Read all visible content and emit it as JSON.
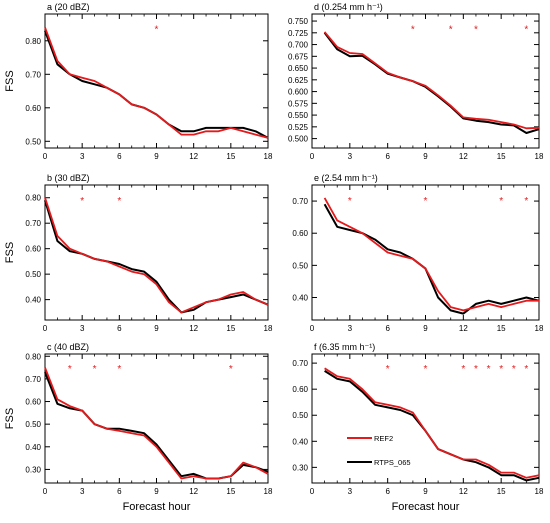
{
  "chart_data": [
    {
      "type": "line",
      "title": "a (20 dBZ)",
      "ylabel": "FSS",
      "xlabel": "",
      "xlim": [
        0,
        18
      ],
      "ylim": [
        0.48,
        0.88
      ],
      "xticks": [
        0,
        3,
        6,
        9,
        12,
        15,
        18
      ],
      "yticks": [
        0.5,
        0.6,
        0.7,
        0.8
      ],
      "ytick_labels": [
        "0.50",
        "0.60",
        "0.70",
        "0.80"
      ],
      "x": [
        0,
        1,
        2,
        3,
        4,
        5,
        6,
        7,
        8,
        9,
        10,
        11,
        12,
        13,
        14,
        15,
        16,
        17,
        18
      ],
      "series": [
        {
          "name": "REF2",
          "color": "#e41a1c",
          "values": [
            0.84,
            0.74,
            0.7,
            0.69,
            0.68,
            0.66,
            0.64,
            0.61,
            0.6,
            0.58,
            0.55,
            0.52,
            0.52,
            0.53,
            0.53,
            0.54,
            0.53,
            0.52,
            0.51
          ]
        },
        {
          "name": "RTPS_065",
          "color": "#000000",
          "values": [
            0.83,
            0.73,
            0.7,
            0.68,
            0.67,
            0.66,
            0.64,
            0.61,
            0.6,
            0.58,
            0.55,
            0.53,
            0.53,
            0.54,
            0.54,
            0.54,
            0.54,
            0.53,
            0.51
          ]
        }
      ],
      "significance_marks": [
        9
      ]
    },
    {
      "type": "line",
      "title": "b (30 dBZ)",
      "ylabel": "FSS",
      "xlabel": "",
      "xlim": [
        0,
        18
      ],
      "ylim": [
        0.32,
        0.85
      ],
      "xticks": [
        0,
        3,
        6,
        9,
        12,
        15,
        18
      ],
      "yticks": [
        0.4,
        0.5,
        0.6,
        0.7,
        0.8
      ],
      "ytick_labels": [
        "0.40",
        "0.50",
        "0.60",
        "0.70",
        "0.80"
      ],
      "x": [
        0,
        1,
        2,
        3,
        4,
        5,
        6,
        7,
        8,
        9,
        10,
        11,
        12,
        13,
        14,
        15,
        16,
        17,
        18
      ],
      "series": [
        {
          "name": "REF2",
          "color": "#e41a1c",
          "values": [
            0.8,
            0.65,
            0.6,
            0.58,
            0.56,
            0.55,
            0.53,
            0.51,
            0.5,
            0.46,
            0.39,
            0.35,
            0.37,
            0.39,
            0.4,
            0.42,
            0.43,
            0.4,
            0.38
          ]
        },
        {
          "name": "RTPS_065",
          "color": "#000000",
          "values": [
            0.79,
            0.63,
            0.59,
            0.58,
            0.56,
            0.55,
            0.54,
            0.52,
            0.51,
            0.47,
            0.4,
            0.35,
            0.36,
            0.39,
            0.4,
            0.41,
            0.42,
            0.4,
            0.38
          ]
        }
      ],
      "significance_marks": [
        3,
        6
      ]
    },
    {
      "type": "line",
      "title": "c (40 dBZ)",
      "ylabel": "FSS",
      "xlabel": "Forecast hour",
      "xlim": [
        0,
        18
      ],
      "ylim": [
        0.24,
        0.81
      ],
      "xticks": [
        0,
        3,
        6,
        9,
        12,
        15,
        18
      ],
      "yticks": [
        0.3,
        0.4,
        0.5,
        0.6,
        0.7,
        0.8
      ],
      "ytick_labels": [
        "0.30",
        "0.40",
        "0.50",
        "0.60",
        "0.70",
        "0.80"
      ],
      "x": [
        0,
        1,
        2,
        3,
        4,
        5,
        6,
        7,
        8,
        9,
        10,
        11,
        12,
        13,
        14,
        15,
        16,
        17,
        18
      ],
      "series": [
        {
          "name": "REF2",
          "color": "#e41a1c",
          "values": [
            0.75,
            0.61,
            0.58,
            0.56,
            0.5,
            0.48,
            0.47,
            0.46,
            0.45,
            0.4,
            0.33,
            0.26,
            0.27,
            0.26,
            0.26,
            0.27,
            0.33,
            0.31,
            0.28
          ]
        },
        {
          "name": "RTPS_065",
          "color": "#000000",
          "values": [
            0.73,
            0.59,
            0.57,
            0.56,
            0.5,
            0.48,
            0.48,
            0.47,
            0.46,
            0.41,
            0.34,
            0.27,
            0.28,
            0.26,
            0.26,
            0.27,
            0.32,
            0.31,
            0.29
          ]
        }
      ],
      "significance_marks": [
        2,
        4,
        6,
        15
      ]
    },
    {
      "type": "line",
      "title": "d (0.254 mm h⁻¹)",
      "ylabel": "",
      "xlabel": "",
      "xlim": [
        0,
        18
      ],
      "ylim": [
        0.48,
        0.765
      ],
      "xticks": [
        0,
        3,
        6,
        9,
        12,
        15,
        18
      ],
      "yticks": [
        0.5,
        0.525,
        0.55,
        0.575,
        0.6,
        0.625,
        0.65,
        0.675,
        0.7,
        0.725,
        0.75
      ],
      "ytick_labels": [
        "0.500",
        "0.525",
        "0.550",
        "0.575",
        "0.600",
        "0.625",
        "0.650",
        "0.675",
        "0.700",
        "0.725",
        "0.750"
      ],
      "x": [
        1,
        2,
        3,
        4,
        5,
        6,
        7,
        8,
        9,
        10,
        11,
        12,
        13,
        14,
        15,
        16,
        17,
        18
      ],
      "series": [
        {
          "name": "REF2",
          "color": "#e41a1c",
          "values": [
            0.727,
            0.695,
            0.682,
            0.68,
            0.66,
            0.64,
            0.63,
            0.622,
            0.612,
            0.592,
            0.57,
            0.545,
            0.542,
            0.54,
            0.535,
            0.53,
            0.522,
            0.523
          ]
        },
        {
          "name": "RTPS_065",
          "color": "#000000",
          "values": [
            0.725,
            0.69,
            0.675,
            0.676,
            0.658,
            0.638,
            0.63,
            0.622,
            0.61,
            0.59,
            0.568,
            0.543,
            0.538,
            0.535,
            0.53,
            0.528,
            0.512,
            0.52
          ]
        }
      ],
      "significance_marks": [
        8,
        11,
        13,
        17
      ]
    },
    {
      "type": "line",
      "title": "e (2.54 mm h⁻¹)",
      "ylabel": "",
      "xlabel": "",
      "xlim": [
        0,
        18
      ],
      "ylim": [
        0.33,
        0.75
      ],
      "xticks": [
        0,
        3,
        6,
        9,
        12,
        15,
        18
      ],
      "yticks": [
        0.4,
        0.5,
        0.6,
        0.7
      ],
      "ytick_labels": [
        "0.40",
        "0.50",
        "0.60",
        "0.70"
      ],
      "x": [
        1,
        2,
        3,
        4,
        5,
        6,
        7,
        8,
        9,
        10,
        11,
        12,
        13,
        14,
        15,
        16,
        17,
        18
      ],
      "series": [
        {
          "name": "REF2",
          "color": "#e41a1c",
          "values": [
            0.71,
            0.64,
            0.62,
            0.6,
            0.57,
            0.54,
            0.53,
            0.52,
            0.49,
            0.42,
            0.37,
            0.36,
            0.37,
            0.38,
            0.37,
            0.38,
            0.39,
            0.39
          ]
        },
        {
          "name": "RTPS_065",
          "color": "#000000",
          "values": [
            0.69,
            0.62,
            0.61,
            0.6,
            0.58,
            0.55,
            0.54,
            0.52,
            0.49,
            0.4,
            0.36,
            0.35,
            0.38,
            0.39,
            0.38,
            0.39,
            0.4,
            0.39
          ]
        }
      ],
      "significance_marks": [
        3,
        9,
        15,
        17
      ]
    },
    {
      "type": "line",
      "title": "f (6.35 mm h⁻¹)",
      "ylabel": "",
      "xlabel": "Forecast hour",
      "xlim": [
        0,
        18
      ],
      "ylim": [
        0.24,
        0.735
      ],
      "xticks": [
        0,
        3,
        6,
        9,
        12,
        15,
        18
      ],
      "yticks": [
        0.3,
        0.4,
        0.5,
        0.6,
        0.7
      ],
      "ytick_labels": [
        "0.30",
        "0.40",
        "0.50",
        "0.60",
        "0.70"
      ],
      "x": [
        1,
        2,
        3,
        4,
        5,
        6,
        7,
        8,
        9,
        10,
        11,
        12,
        13,
        14,
        15,
        16,
        17,
        18
      ],
      "series": [
        {
          "name": "REF2",
          "color": "#e41a1c",
          "values": [
            0.68,
            0.65,
            0.64,
            0.6,
            0.55,
            0.54,
            0.53,
            0.51,
            0.44,
            0.37,
            0.35,
            0.33,
            0.33,
            0.31,
            0.28,
            0.28,
            0.26,
            0.27
          ]
        },
        {
          "name": "RTPS_065",
          "color": "#000000",
          "values": [
            0.67,
            0.64,
            0.63,
            0.59,
            0.54,
            0.53,
            0.52,
            0.5,
            0.44,
            0.37,
            0.35,
            0.33,
            0.32,
            0.3,
            0.27,
            0.27,
            0.25,
            0.26
          ]
        }
      ],
      "significance_marks": [
        6,
        9,
        12,
        13,
        14,
        15,
        16,
        17
      ],
      "legend": {
        "position": "bottom-left",
        "entries": [
          "REF2",
          "RTPS_065"
        ]
      }
    }
  ]
}
